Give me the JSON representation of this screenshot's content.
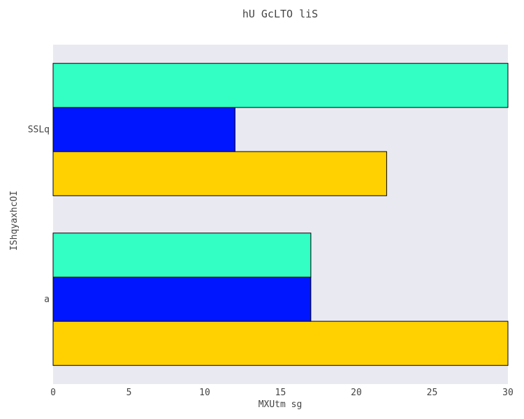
{
  "chart_data": {
    "type": "bar",
    "orientation": "horizontal",
    "title": "hU GcLTO liS",
    "xlabel": "MXUtm sg",
    "ylabel": "IShqyaxhcOI",
    "categories": [
      "a",
      "SSLq"
    ],
    "xlim": [
      0,
      30
    ],
    "xticks": [
      "0",
      "5",
      "10",
      "15",
      "20",
      "25",
      "30"
    ],
    "series": [
      {
        "color": "#FFD100",
        "values": [
          30,
          22
        ]
      },
      {
        "color": "#0016FF",
        "values": [
          17,
          12
        ]
      },
      {
        "color": "#33FFC4",
        "values": [
          17,
          30
        ]
      }
    ],
    "plot_background": "#E9E9F2",
    "bar_outline": "#000000"
  }
}
